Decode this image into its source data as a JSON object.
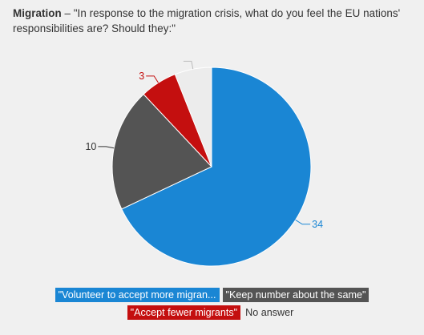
{
  "header": {
    "topic": "Migration",
    "separator": " – ",
    "question": "\"In response to the migration crisis, what do you feel the EU nations' responsibilities are? Should they:\""
  },
  "chart_data": {
    "type": "pie",
    "slices": [
      {
        "label": "\"Volunteer to accept more migran...",
        "value": 34,
        "color": "#1a86d4",
        "value_label": "34",
        "label_color": "#1a86d4",
        "side": "right"
      },
      {
        "label": "\"Keep number about the same\"",
        "value": 10,
        "color": "#545454",
        "value_label": "10",
        "label_color": "#333333",
        "side": "left"
      },
      {
        "label": "\"Accept fewer migrants\"",
        "value": 3,
        "color": "#c40f0f",
        "value_label": "3",
        "label_color": "#c40f0f",
        "side": "left"
      },
      {
        "label": "No answer",
        "value": 3,
        "color": "#ececec",
        "value_label": "",
        "label_color": "#bbbbbb",
        "side": "left"
      }
    ]
  },
  "legend": {
    "rows": [
      [
        {
          "label": "\"Volunteer to accept more migran...",
          "color": "#1a86d4"
        },
        {
          "label": "\"Keep number about the same\"",
          "color": "#545454"
        }
      ],
      [
        {
          "label": "\"Accept fewer migrants\"",
          "color": "#c40f0f"
        },
        {
          "label": "No answer",
          "color": ""
        }
      ]
    ]
  }
}
